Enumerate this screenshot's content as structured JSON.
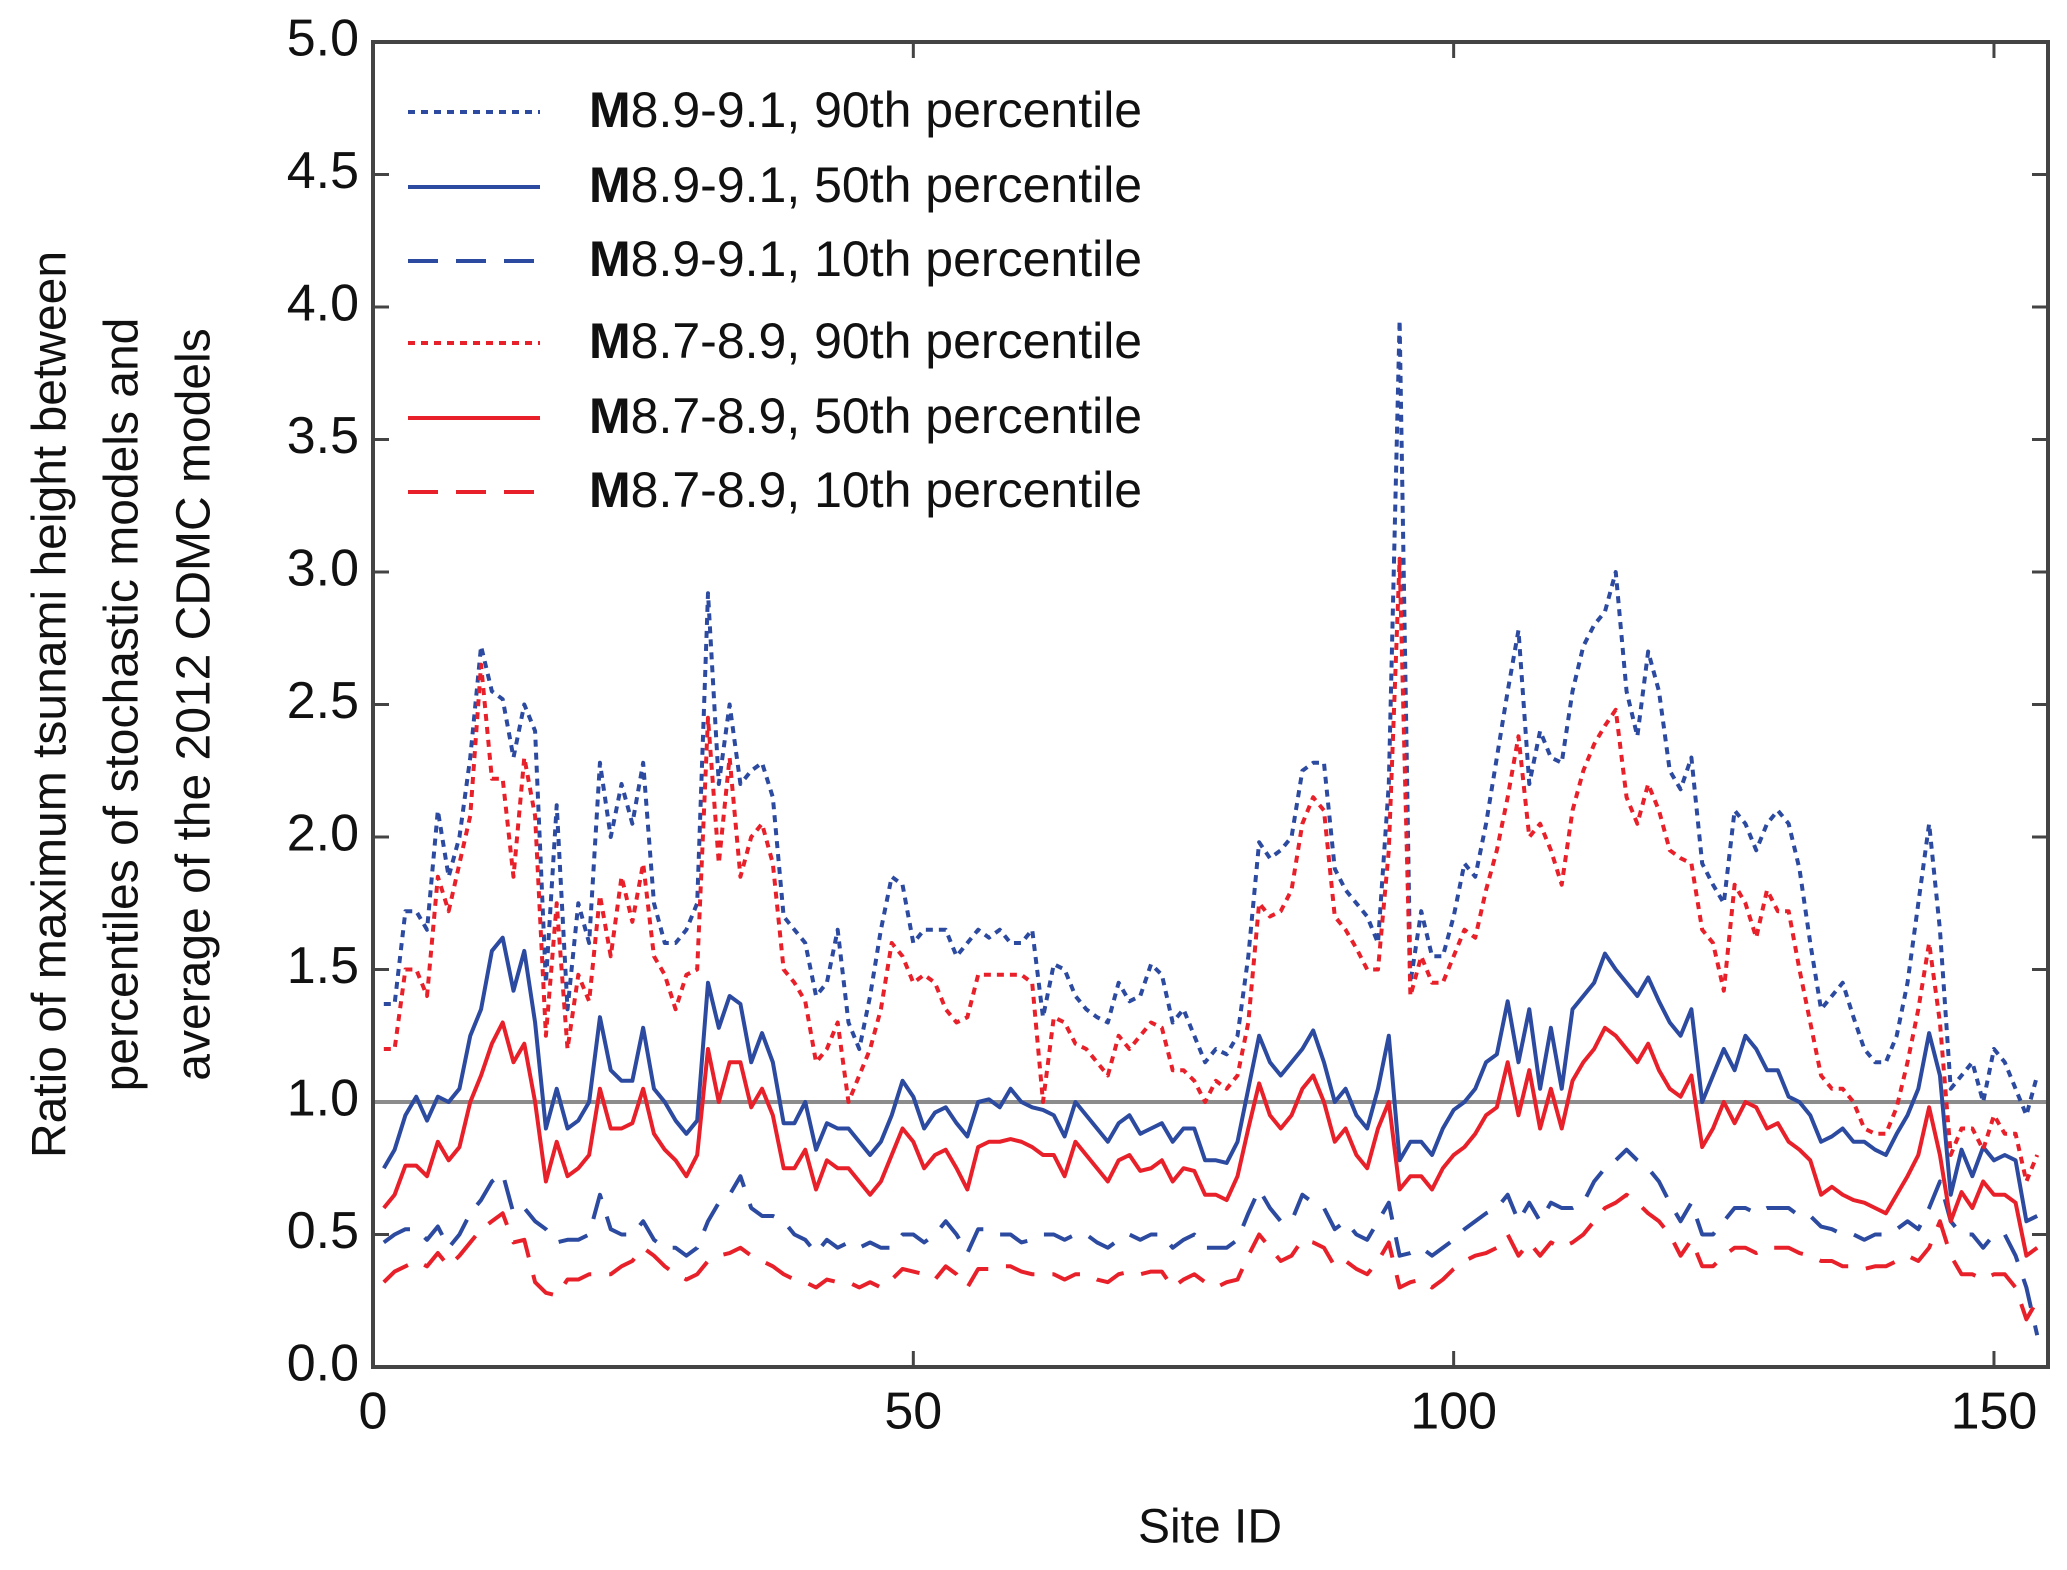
{
  "chart_data": {
    "type": "line",
    "xlabel": "Site ID",
    "ylabel": [
      "Ratio of maximum tsunami height between",
      "percentiles of stochastic models and",
      "average of the 2012 CDMC models"
    ],
    "xlim": [
      0,
      155
    ],
    "ylim": [
      0,
      5
    ],
    "xticks": [
      0,
      50,
      100,
      150
    ],
    "yticks": [
      {
        "value": 0,
        "label": "0.0"
      },
      {
        "value": 0.5,
        "label": "0.5"
      },
      {
        "value": 1,
        "label": "1.0"
      },
      {
        "value": 1.5,
        "label": "1.5"
      },
      {
        "value": 2,
        "label": "2.0"
      },
      {
        "value": 2.5,
        "label": "2.5"
      },
      {
        "value": 3,
        "label": "3.0"
      },
      {
        "value": 3.5,
        "label": "3.5"
      },
      {
        "value": 4,
        "label": "4.0"
      },
      {
        "value": 4.5,
        "label": "4.5"
      },
      {
        "value": 5,
        "label": "5.0"
      }
    ],
    "grid": false,
    "legend": "upper left",
    "hline": {
      "value": 1,
      "color": "#8c8c8c"
    },
    "x": [
      1,
      2,
      3,
      4,
      5,
      6,
      7,
      8,
      9,
      10,
      11,
      12,
      13,
      14,
      15,
      16,
      17,
      18,
      19,
      20,
      21,
      22,
      23,
      24,
      25,
      26,
      27,
      28,
      29,
      30,
      31,
      32,
      33,
      34,
      35,
      36,
      37,
      38,
      39,
      40,
      41,
      42,
      43,
      44,
      45,
      46,
      47,
      48,
      49,
      50,
      51,
      52,
      53,
      54,
      55,
      56,
      57,
      58,
      59,
      60,
      61,
      62,
      63,
      64,
      65,
      66,
      67,
      68,
      69,
      70,
      71,
      72,
      73,
      74,
      75,
      76,
      77,
      78,
      79,
      80,
      81,
      82,
      83,
      84,
      85,
      86,
      87,
      88,
      89,
      90,
      91,
      92,
      93,
      94,
      95,
      96,
      97,
      98,
      99,
      100,
      101,
      102,
      103,
      104,
      105,
      106,
      107,
      108,
      109,
      110,
      111,
      112,
      113,
      114,
      115,
      116,
      117,
      118,
      119,
      120,
      121,
      122,
      123,
      124,
      125,
      126,
      127,
      128,
      129,
      130,
      131,
      132,
      133,
      134,
      135,
      136,
      137,
      138,
      139,
      140,
      141,
      142,
      143,
      144,
      145,
      146,
      147,
      148,
      149,
      150,
      151,
      152,
      153,
      154
    ],
    "series": [
      {
        "name": "M8.9-9.1, 90th percentile",
        "color": "#2b4aa0",
        "dash": "dotted",
        "values": [
          1.37,
          1.37,
          1.72,
          1.72,
          1.65,
          2.1,
          1.85,
          2.0,
          2.3,
          2.72,
          2.55,
          2.52,
          2.3,
          2.5,
          2.4,
          1.45,
          2.12,
          1.35,
          1.75,
          1.6,
          2.28,
          2.0,
          2.2,
          2.05,
          2.28,
          1.75,
          1.6,
          1.6,
          1.65,
          1.75,
          2.92,
          2.2,
          2.5,
          2.2,
          2.25,
          2.28,
          2.15,
          1.7,
          1.65,
          1.6,
          1.4,
          1.45,
          1.65,
          1.3,
          1.2,
          1.4,
          1.65,
          1.85,
          1.82,
          1.6,
          1.65,
          1.65,
          1.65,
          1.55,
          1.6,
          1.65,
          1.62,
          1.65,
          1.6,
          1.6,
          1.65,
          1.32,
          1.52,
          1.5,
          1.4,
          1.35,
          1.32,
          1.3,
          1.45,
          1.38,
          1.4,
          1.52,
          1.48,
          1.3,
          1.35,
          1.25,
          1.15,
          1.2,
          1.18,
          1.25,
          1.55,
          1.98,
          1.92,
          1.95,
          2.0,
          2.25,
          2.28,
          2.28,
          1.88,
          1.8,
          1.75,
          1.7,
          1.6,
          2.2,
          3.95,
          1.45,
          1.72,
          1.55,
          1.55,
          1.7,
          1.9,
          1.85,
          2.05,
          2.3,
          2.55,
          2.78,
          2.2,
          2.4,
          2.3,
          2.28,
          2.55,
          2.72,
          2.8,
          2.85,
          3.0,
          2.55,
          2.38,
          2.7,
          2.55,
          2.25,
          2.18,
          2.3,
          1.9,
          1.82,
          1.75,
          2.1,
          2.05,
          1.95,
          2.05,
          2.1,
          2.05,
          1.88,
          1.6,
          1.35,
          1.4,
          1.45,
          1.32,
          1.2,
          1.15,
          1.15,
          1.25,
          1.45,
          1.75,
          2.05,
          1.65,
          1.05,
          1.1,
          1.15,
          1.0,
          1.2,
          1.15,
          1.05,
          0.95,
          1.1
        ]
      },
      {
        "name": "M8.9-9.1, 50th percentile",
        "color": "#2b4aa0",
        "dash": "solid",
        "values": [
          0.75,
          0.82,
          0.95,
          1.02,
          0.93,
          1.02,
          1.0,
          1.05,
          1.25,
          1.35,
          1.57,
          1.62,
          1.42,
          1.57,
          1.3,
          0.9,
          1.05,
          0.9,
          0.93,
          1.0,
          1.32,
          1.12,
          1.08,
          1.08,
          1.28,
          1.05,
          1.0,
          0.93,
          0.88,
          0.93,
          1.45,
          1.28,
          1.4,
          1.37,
          1.15,
          1.26,
          1.15,
          0.92,
          0.92,
          1.0,
          0.82,
          0.92,
          0.9,
          0.9,
          0.85,
          0.8,
          0.85,
          0.95,
          1.08,
          1.02,
          0.9,
          0.96,
          0.98,
          0.92,
          0.87,
          1.0,
          1.01,
          0.98,
          1.05,
          1.0,
          0.98,
          0.97,
          0.95,
          0.87,
          1.0,
          0.95,
          0.9,
          0.85,
          0.92,
          0.95,
          0.88,
          0.9,
          0.92,
          0.85,
          0.9,
          0.9,
          0.78,
          0.78,
          0.77,
          0.85,
          1.05,
          1.25,
          1.15,
          1.1,
          1.15,
          1.2,
          1.27,
          1.15,
          1.0,
          1.05,
          0.95,
          0.9,
          1.05,
          1.25,
          0.78,
          0.85,
          0.85,
          0.8,
          0.9,
          0.97,
          1.0,
          1.05,
          1.15,
          1.18,
          1.38,
          1.15,
          1.35,
          1.05,
          1.28,
          1.05,
          1.35,
          1.4,
          1.45,
          1.56,
          1.5,
          1.45,
          1.4,
          1.47,
          1.38,
          1.3,
          1.25,
          1.35,
          1.0,
          1.1,
          1.2,
          1.12,
          1.25,
          1.2,
          1.12,
          1.12,
          1.02,
          1.0,
          0.95,
          0.85,
          0.87,
          0.9,
          0.85,
          0.85,
          0.82,
          0.8,
          0.88,
          0.95,
          1.05,
          1.26,
          1.1,
          0.65,
          0.82,
          0.72,
          0.83,
          0.78,
          0.8,
          0.78,
          0.55,
          0.57
        ]
      },
      {
        "name": "M8.9-9.1, 10th percentile",
        "color": "#2b4aa0",
        "dash": "dashed",
        "values": [
          0.47,
          0.5,
          0.52,
          0.52,
          0.48,
          0.53,
          0.45,
          0.5,
          0.58,
          0.63,
          0.7,
          0.73,
          0.58,
          0.6,
          0.55,
          0.52,
          0.47,
          0.48,
          0.48,
          0.5,
          0.65,
          0.52,
          0.5,
          0.5,
          0.55,
          0.48,
          0.45,
          0.45,
          0.42,
          0.45,
          0.55,
          0.62,
          0.65,
          0.72,
          0.6,
          0.57,
          0.57,
          0.55,
          0.5,
          0.48,
          0.43,
          0.48,
          0.45,
          0.47,
          0.45,
          0.47,
          0.45,
          0.45,
          0.5,
          0.5,
          0.47,
          0.5,
          0.55,
          0.5,
          0.43,
          0.52,
          0.52,
          0.5,
          0.5,
          0.47,
          0.48,
          0.5,
          0.5,
          0.48,
          0.5,
          0.5,
          0.47,
          0.45,
          0.48,
          0.5,
          0.48,
          0.5,
          0.5,
          0.45,
          0.48,
          0.5,
          0.45,
          0.45,
          0.45,
          0.48,
          0.58,
          0.67,
          0.6,
          0.55,
          0.55,
          0.65,
          0.62,
          0.6,
          0.52,
          0.55,
          0.5,
          0.48,
          0.55,
          0.62,
          0.42,
          0.43,
          0.45,
          0.42,
          0.45,
          0.48,
          0.52,
          0.55,
          0.58,
          0.6,
          0.65,
          0.55,
          0.62,
          0.55,
          0.62,
          0.6,
          0.6,
          0.62,
          0.7,
          0.75,
          0.78,
          0.82,
          0.78,
          0.75,
          0.7,
          0.62,
          0.55,
          0.62,
          0.5,
          0.5,
          0.55,
          0.6,
          0.6,
          0.58,
          0.6,
          0.6,
          0.6,
          0.57,
          0.57,
          0.53,
          0.52,
          0.5,
          0.5,
          0.48,
          0.5,
          0.5,
          0.52,
          0.55,
          0.52,
          0.6,
          0.7,
          0.55,
          0.5,
          0.5,
          0.45,
          0.5,
          0.5,
          0.42,
          0.3,
          0.12
        ]
      },
      {
        "name": "M8.7-8.9, 90th percentile",
        "color": "#e8202a",
        "dash": "dotted",
        "values": [
          1.2,
          1.2,
          1.5,
          1.5,
          1.4,
          1.85,
          1.72,
          1.9,
          2.08,
          2.65,
          2.22,
          2.22,
          1.85,
          2.3,
          2.08,
          1.25,
          1.75,
          1.2,
          1.48,
          1.38,
          1.78,
          1.55,
          1.85,
          1.68,
          1.9,
          1.55,
          1.48,
          1.35,
          1.48,
          1.5,
          2.45,
          1.9,
          2.3,
          1.85,
          2.0,
          2.05,
          1.9,
          1.5,
          1.45,
          1.38,
          1.15,
          1.2,
          1.3,
          1.0,
          1.1,
          1.2,
          1.35,
          1.6,
          1.55,
          1.45,
          1.48,
          1.45,
          1.35,
          1.3,
          1.32,
          1.48,
          1.48,
          1.48,
          1.48,
          1.48,
          1.45,
          1.0,
          1.32,
          1.3,
          1.22,
          1.2,
          1.15,
          1.1,
          1.25,
          1.2,
          1.25,
          1.3,
          1.28,
          1.12,
          1.12,
          1.08,
          1.0,
          1.08,
          1.05,
          1.1,
          1.3,
          1.75,
          1.7,
          1.72,
          1.8,
          2.05,
          2.15,
          2.1,
          1.7,
          1.65,
          1.58,
          1.5,
          1.5,
          1.95,
          3.05,
          1.4,
          1.55,
          1.45,
          1.45,
          1.55,
          1.65,
          1.62,
          1.8,
          1.95,
          2.15,
          2.38,
          2.0,
          2.05,
          1.95,
          1.82,
          2.1,
          2.25,
          2.35,
          2.42,
          2.48,
          2.15,
          2.05,
          2.2,
          2.1,
          1.95,
          1.92,
          1.9,
          1.65,
          1.6,
          1.42,
          1.82,
          1.75,
          1.62,
          1.8,
          1.72,
          1.72,
          1.5,
          1.3,
          1.1,
          1.05,
          1.05,
          1.0,
          0.9,
          0.88,
          0.88,
          0.98,
          1.15,
          1.35,
          1.6,
          1.3,
          0.8,
          0.9,
          0.9,
          0.82,
          0.95,
          0.88,
          0.88,
          0.7,
          0.8
        ]
      },
      {
        "name": "M8.7-8.9, 50th percentile",
        "color": "#e8202a",
        "dash": "solid",
        "values": [
          0.6,
          0.65,
          0.76,
          0.76,
          0.72,
          0.85,
          0.78,
          0.83,
          1.0,
          1.1,
          1.22,
          1.3,
          1.15,
          1.22,
          1.0,
          0.7,
          0.85,
          0.72,
          0.75,
          0.8,
          1.05,
          0.9,
          0.9,
          0.92,
          1.05,
          0.88,
          0.82,
          0.78,
          0.72,
          0.8,
          1.2,
          1.0,
          1.15,
          1.15,
          0.98,
          1.05,
          0.95,
          0.75,
          0.75,
          0.82,
          0.67,
          0.78,
          0.75,
          0.75,
          0.7,
          0.65,
          0.7,
          0.8,
          0.9,
          0.85,
          0.75,
          0.8,
          0.82,
          0.75,
          0.67,
          0.83,
          0.85,
          0.85,
          0.86,
          0.85,
          0.83,
          0.8,
          0.8,
          0.72,
          0.85,
          0.8,
          0.75,
          0.7,
          0.78,
          0.8,
          0.74,
          0.75,
          0.78,
          0.7,
          0.75,
          0.74,
          0.65,
          0.65,
          0.63,
          0.72,
          0.9,
          1.07,
          0.95,
          0.9,
          0.95,
          1.05,
          1.1,
          1.0,
          0.85,
          0.9,
          0.8,
          0.75,
          0.9,
          1.0,
          0.67,
          0.72,
          0.72,
          0.67,
          0.75,
          0.8,
          0.83,
          0.88,
          0.95,
          0.98,
          1.15,
          0.95,
          1.12,
          0.9,
          1.05,
          0.9,
          1.08,
          1.15,
          1.2,
          1.28,
          1.25,
          1.2,
          1.15,
          1.22,
          1.12,
          1.05,
          1.02,
          1.1,
          0.83,
          0.9,
          1.0,
          0.92,
          1.0,
          0.98,
          0.9,
          0.92,
          0.85,
          0.82,
          0.78,
          0.65,
          0.68,
          0.65,
          0.63,
          0.62,
          0.6,
          0.58,
          0.65,
          0.72,
          0.8,
          0.98,
          0.8,
          0.55,
          0.66,
          0.6,
          0.7,
          0.65,
          0.65,
          0.62,
          0.42,
          0.45
        ]
      },
      {
        "name": "M8.7-8.9, 10th percentile",
        "color": "#e8202a",
        "dash": "dashed",
        "values": [
          0.32,
          0.36,
          0.38,
          0.4,
          0.38,
          0.43,
          0.38,
          0.42,
          0.47,
          0.52,
          0.55,
          0.58,
          0.47,
          0.48,
          0.32,
          0.28,
          0.27,
          0.33,
          0.33,
          0.35,
          0.35,
          0.35,
          0.38,
          0.4,
          0.45,
          0.42,
          0.38,
          0.35,
          0.33,
          0.35,
          0.4,
          0.42,
          0.43,
          0.45,
          0.42,
          0.4,
          0.38,
          0.35,
          0.33,
          0.32,
          0.3,
          0.33,
          0.32,
          0.32,
          0.3,
          0.32,
          0.3,
          0.33,
          0.37,
          0.36,
          0.35,
          0.33,
          0.38,
          0.35,
          0.3,
          0.37,
          0.37,
          0.38,
          0.38,
          0.36,
          0.35,
          0.35,
          0.35,
          0.33,
          0.35,
          0.35,
          0.33,
          0.32,
          0.35,
          0.36,
          0.35,
          0.36,
          0.36,
          0.3,
          0.33,
          0.35,
          0.32,
          0.3,
          0.32,
          0.33,
          0.42,
          0.5,
          0.45,
          0.4,
          0.42,
          0.48,
          0.47,
          0.45,
          0.38,
          0.4,
          0.37,
          0.35,
          0.4,
          0.47,
          0.3,
          0.32,
          0.33,
          0.3,
          0.33,
          0.37,
          0.4,
          0.42,
          0.43,
          0.45,
          0.5,
          0.42,
          0.47,
          0.42,
          0.47,
          0.45,
          0.47,
          0.5,
          0.55,
          0.6,
          0.62,
          0.65,
          0.62,
          0.58,
          0.55,
          0.5,
          0.42,
          0.48,
          0.38,
          0.38,
          0.42,
          0.45,
          0.45,
          0.43,
          0.45,
          0.45,
          0.45,
          0.43,
          0.42,
          0.4,
          0.4,
          0.38,
          0.38,
          0.37,
          0.38,
          0.38,
          0.4,
          0.42,
          0.4,
          0.45,
          0.55,
          0.42,
          0.35,
          0.35,
          0.33,
          0.35,
          0.35,
          0.3,
          0.18,
          0.25
        ]
      }
    ]
  }
}
